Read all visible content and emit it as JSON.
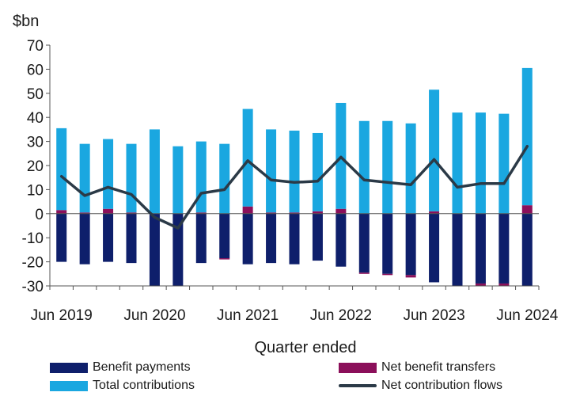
{
  "chart_data": {
    "type": "bar",
    "stacked": true,
    "unit_label": "$bn",
    "xlabel": "Quarter ended",
    "ylabel": "",
    "ylim": [
      -30,
      70
    ],
    "yticks": [
      -30,
      -20,
      -10,
      0,
      10,
      20,
      30,
      40,
      50,
      60,
      70
    ],
    "grid": false,
    "legend_position": "bottom",
    "categories": [
      "Jun 2019",
      "Sep 2019",
      "Dec 2019",
      "Mar 2020",
      "Jun 2020",
      "Sep 2020",
      "Dec 2020",
      "Mar 2021",
      "Jun 2021",
      "Sep 2021",
      "Dec 2021",
      "Mar 2022",
      "Jun 2022",
      "Sep 2022",
      "Dec 2022",
      "Mar 2023",
      "Jun 2023",
      "Sep 2023",
      "Dec 2023",
      "Mar 2024",
      "Jun 2024"
    ],
    "x_tick_labels": [
      "Jun 2019",
      "Jun 2020",
      "Jun 2021",
      "Jun 2022",
      "Jun 2023",
      "Jun 2024"
    ],
    "series": [
      {
        "name": "Benefit payments",
        "kind": "bar",
        "color": "#0e1f6b",
        "values": [
          -20,
          -21,
          -20,
          -20.5,
          -30,
          -30,
          -20.5,
          -18.5,
          -21,
          -20.5,
          -21,
          -19.5,
          -22,
          -24.5,
          -25,
          -25.5,
          -28.5,
          -30,
          -29,
          -29,
          -30
        ]
      },
      {
        "name": "Net benefit transfers",
        "kind": "bar",
        "color": "#8b0f5a",
        "values": [
          1.5,
          0.5,
          2,
          0.5,
          0,
          0,
          0.5,
          -0.5,
          3,
          0.5,
          0.5,
          1,
          2,
          -0.5,
          -0.5,
          -1,
          1,
          -2,
          -1,
          -1.5,
          3.5
        ]
      },
      {
        "name": "Total contributions",
        "kind": "bar",
        "color": "#1aa7e0",
        "values": [
          34,
          28.5,
          29,
          28.5,
          35,
          28,
          29.5,
          29,
          40.5,
          34.5,
          34,
          32.5,
          44,
          38.5,
          38.5,
          37.5,
          50.5,
          42,
          42,
          41.5,
          57
        ]
      },
      {
        "name": "Net contribution flows",
        "kind": "line",
        "color": "#2b3a47",
        "values": [
          15.5,
          7.5,
          11,
          8,
          -1.5,
          -6,
          8.5,
          10,
          22,
          14,
          13,
          13.5,
          23.5,
          14,
          13,
          12,
          22.5,
          11,
          12.5,
          12.5,
          28
        ]
      }
    ]
  }
}
